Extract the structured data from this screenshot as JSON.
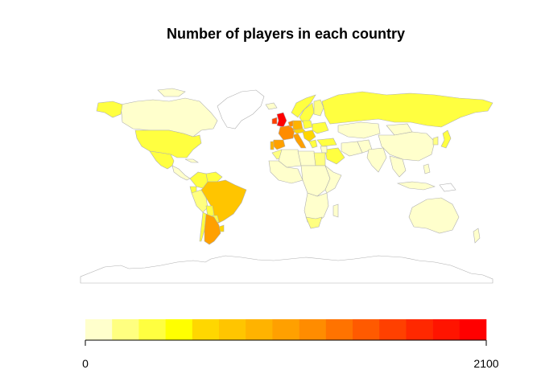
{
  "chart_data": {
    "type": "choropleth",
    "title": "Number of players in each country",
    "legend": {
      "placement": "bottom",
      "min_label": "0",
      "max_label": "2100",
      "range": [
        0,
        2100
      ],
      "colors": [
        "#FFFFCC",
        "#FFFF80",
        "#FFFF40",
        "#FFFF00",
        "#FFD700",
        "#FFC500",
        "#FFB300",
        "#FFA000",
        "#FF8C00",
        "#FF7300",
        "#FF5A00",
        "#FF4000",
        "#FF2800",
        "#FF1400",
        "#FF0000"
      ]
    },
    "colors": {
      "low": "#FFFFCC",
      "mid": "#FFFF40",
      "high": "#FF0000",
      "border": "#B0B0B0"
    }
  }
}
